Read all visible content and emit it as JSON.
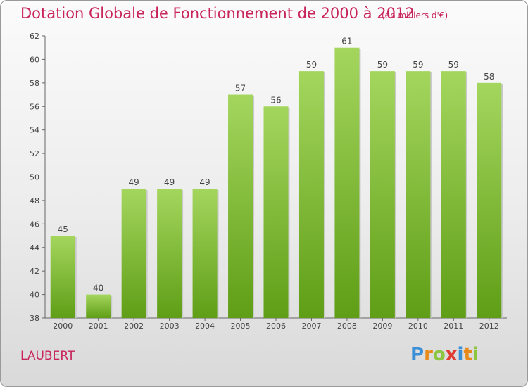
{
  "header": {
    "title": "Dotation Globale de Fonctionnement de 2000 à 2012",
    "unit": "(en milliers d'€)"
  },
  "footer": {
    "commune": "LAUBERT",
    "logo_letters": [
      "P",
      "r",
      "o",
      "x",
      "i",
      "t",
      "i"
    ],
    "logo_colors": [
      "#3b8fd6",
      "#e88a1a",
      "#8cc63f",
      "#e03c31",
      "#3b8fd6",
      "#e88a1a",
      "#8cc63f"
    ]
  },
  "colors": {
    "bar_top": "#a4d65e",
    "bar_bottom": "#5f9e16",
    "text": "#c8235a",
    "axis": "#555555"
  },
  "chart_data": {
    "type": "bar",
    "categories": [
      "2000",
      "2001",
      "2002",
      "2003",
      "2004",
      "2005",
      "2006",
      "2007",
      "2008",
      "2009",
      "2010",
      "2011",
      "2012"
    ],
    "values": [
      45,
      40,
      49,
      49,
      49,
      57,
      56,
      59,
      61,
      59,
      59,
      59,
      58
    ],
    "ylim": [
      38,
      62
    ],
    "yticks": [
      38,
      40,
      42,
      44,
      46,
      48,
      50,
      52,
      54,
      56,
      58,
      60,
      62
    ],
    "grid": false,
    "xlabel": "",
    "ylabel": ""
  }
}
